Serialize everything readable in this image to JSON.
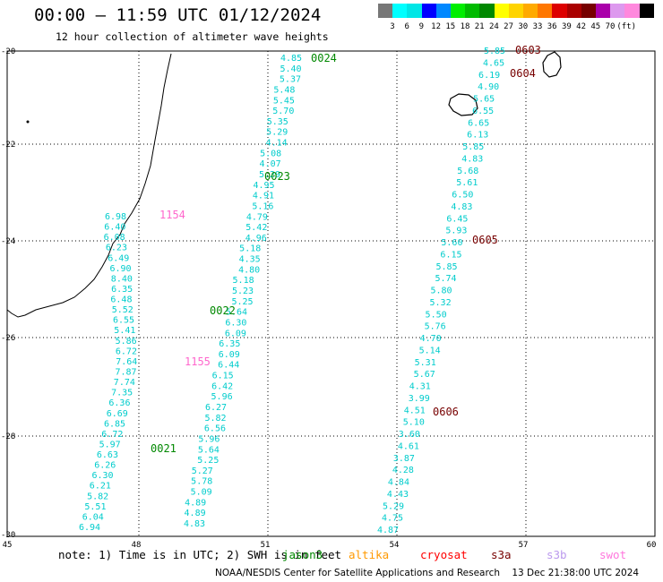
{
  "header": {
    "title": "00:00 – 11:59 UTC 01/12/2024",
    "subtitle": "12 hour collection of altimeter wave heights"
  },
  "legend": {
    "unit": "(ft)",
    "colors": [
      "#777777",
      "#00ffff",
      "#00e6e6",
      "#0000ff",
      "#0088ff",
      "#00ee00",
      "#00bb00",
      "#008800",
      "#ffff00",
      "#ffd400",
      "#ffaa00",
      "#ff7700",
      "#dd0000",
      "#aa0000",
      "#770000",
      "#aa00aa",
      "#dd99ee",
      "#ff88dd",
      "#000000"
    ],
    "labels": [
      "3",
      "6",
      "9",
      "12",
      "15",
      "18",
      "21",
      "24",
      "27",
      "30",
      "33",
      "36",
      "39",
      "42",
      "45",
      "70"
    ]
  },
  "axes": {
    "x_ticks": [
      "45",
      "48",
      "51",
      "54",
      "57",
      "60"
    ],
    "y_ticks": [
      "-20",
      "-22",
      "-24",
      "-26",
      "-28",
      "-30"
    ]
  },
  "passes": [
    {
      "label": "0024",
      "color": "#008800"
    },
    {
      "label": "0023",
      "color": "#008800"
    },
    {
      "label": "0022",
      "color": "#008800"
    },
    {
      "label": "0021",
      "color": "#008800"
    },
    {
      "label": "1154",
      "color": "#ff66cc"
    },
    {
      "label": "1155",
      "color": "#ff66cc"
    },
    {
      "label": "0603",
      "color": "#770000"
    },
    {
      "label": "0604",
      "color": "#770000"
    },
    {
      "label": "0605",
      "color": "#770000"
    },
    {
      "label": "0606",
      "color": "#770000"
    }
  ],
  "tracks": {
    "track1": [
      "4.85",
      "5.40",
      "5.37",
      "5.48",
      "5.45",
      "5.70",
      "5.35",
      "5.29",
      "4.14",
      "5.08",
      "4.07",
      "5.29",
      "4.95",
      "4.91",
      "5.16",
      "4.79",
      "5.42",
      "4.96",
      "5.18",
      "4.35",
      "4.80",
      "5.18",
      "5.23",
      "5.25",
      "5.64",
      "6.30",
      "6.09",
      "6.35",
      "6.09",
      "6.44",
      "6.15",
      "6.42",
      "5.96",
      "6.27",
      "5.82",
      "6.56",
      "5.96",
      "5.64",
      "5.25",
      "5.27",
      "5.78",
      "5.09",
      "4.89",
      "4.89",
      "4.83"
    ],
    "track2": [
      "6.98",
      "6.40",
      "6.08",
      "6.23",
      "6.49",
      "6.90",
      "8.40",
      "6.35",
      "6.48",
      "5.52",
      "6.55",
      "5.41",
      "5.86",
      "6.72",
      "7.64",
      "7.87",
      "7.74",
      "7.35",
      "6.36",
      "6.69",
      "6.85",
      "6.72",
      "5.97",
      "6.63",
      "6.26",
      "6.30",
      "6.21",
      "5.82",
      "5.51",
      "6.04",
      "6.94"
    ],
    "track3": [
      "5.85",
      "4.65",
      "6.19",
      "4.90",
      "5.65",
      "6.55",
      "6.65",
      "6.13",
      "5.85",
      "4.83",
      "5.68",
      "5.61",
      "6.50",
      "4.83",
      "6.45",
      "5.93",
      "5.60",
      "6.15",
      "5.85",
      "5.74",
      "5.80",
      "5.32",
      "5.50",
      "5.76",
      "4.70",
      "5.14",
      "5.31",
      "5.67",
      "4.31",
      "3.99",
      "4.51",
      "5.10",
      "3.60",
      "4.61",
      "3.87",
      "4.28",
      "4.84",
      "4.43",
      "5.29",
      "4.75",
      "4.87"
    ]
  },
  "footer": {
    "note": "note: 1) Time is in UTC; 2) SWH is in feet",
    "satellites": [
      {
        "name": "jason3",
        "color": "#008800"
      },
      {
        "name": "altika",
        "color": "#ff9900"
      },
      {
        "name": "cryosat",
        "color": "#ff0000"
      },
      {
        "name": "s3a",
        "color": "#770000"
      },
      {
        "name": "s3b",
        "color": "#bb99ee"
      },
      {
        "name": "swot",
        "color": "#ff77dd"
      }
    ],
    "credit": "NOAA/NESDIS Center for Satellite Applications and Research    13 Dec 21:38:00 UTC 2024"
  }
}
